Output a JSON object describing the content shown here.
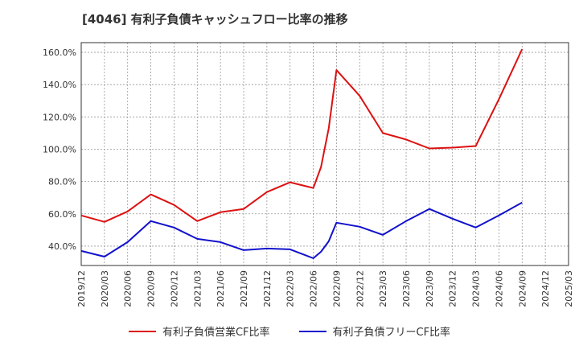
{
  "chart_data": {
    "type": "line",
    "title": "[4046]  有利子負債キャッシュフロー比率の推移",
    "xlabel": "",
    "ylabel": "",
    "ylim": [
      28,
      166
    ],
    "yticks": [
      40,
      60,
      80,
      100,
      120,
      140,
      160
    ],
    "ytick_labels": [
      "40.0%",
      "60.0%",
      "80.0%",
      "100.0%",
      "120.0%",
      "140.0%",
      "160.0%"
    ],
    "xticks": [
      "2019/12",
      "2020/03",
      "2020/06",
      "2020/09",
      "2020/12",
      "2021/03",
      "2021/06",
      "2021/09",
      "2021/12",
      "2022/03",
      "2022/06",
      "2022/09",
      "2022/12",
      "2023/03",
      "2023/06",
      "2023/09",
      "2023/12",
      "2024/03",
      "2024/06",
      "2024/09",
      "2024/12",
      "2025/03"
    ],
    "grid": true,
    "legend_position": "bottom",
    "series": [
      {
        "name": "有利子負債営業CF比率",
        "color": "#dd1111",
        "points": [
          [
            "2019/12",
            59.0
          ],
          [
            "2020/03",
            55.0
          ],
          [
            "2020/06",
            61.5
          ],
          [
            "2020/09",
            72.0
          ],
          [
            "2020/12",
            65.5
          ],
          [
            "2021/03",
            55.5
          ],
          [
            "2021/06",
            61.0
          ],
          [
            "2021/09",
            63.0
          ],
          [
            "2021/12",
            73.5
          ],
          [
            "2022/03",
            79.5
          ],
          [
            "2022/06",
            76.0
          ],
          [
            "2022/07",
            89.0
          ],
          [
            "2022/08",
            113.0
          ],
          [
            "2022/09",
            149.0
          ],
          [
            "2022/12",
            133.0
          ],
          [
            "2023/03",
            110.0
          ],
          [
            "2023/06",
            106.0
          ],
          [
            "2023/09",
            100.5
          ],
          [
            "2023/12",
            101.0
          ],
          [
            "2024/03",
            102.0
          ],
          [
            "2024/06",
            131.0
          ],
          [
            "2024/09",
            162.0
          ]
        ]
      },
      {
        "name": "有利子負債フリーCF比率",
        "color": "#1111cc",
        "points": [
          [
            "2019/12",
            37.0
          ],
          [
            "2020/03",
            33.5
          ],
          [
            "2020/06",
            42.5
          ],
          [
            "2020/09",
            55.5
          ],
          [
            "2020/12",
            51.5
          ],
          [
            "2021/03",
            44.5
          ],
          [
            "2021/06",
            42.5
          ],
          [
            "2021/09",
            37.5
          ],
          [
            "2021/12",
            38.5
          ],
          [
            "2022/03",
            38.0
          ],
          [
            "2022/06",
            32.5
          ],
          [
            "2022/07",
            36.5
          ],
          [
            "2022/08",
            43.0
          ],
          [
            "2022/09",
            54.5
          ],
          [
            "2022/12",
            52.0
          ],
          [
            "2023/03",
            47.0
          ],
          [
            "2023/06",
            55.5
          ],
          [
            "2023/09",
            63.0
          ],
          [
            "2023/12",
            57.0
          ],
          [
            "2024/03",
            51.5
          ],
          [
            "2024/06",
            59.0
          ],
          [
            "2024/09",
            67.0
          ]
        ]
      }
    ]
  }
}
